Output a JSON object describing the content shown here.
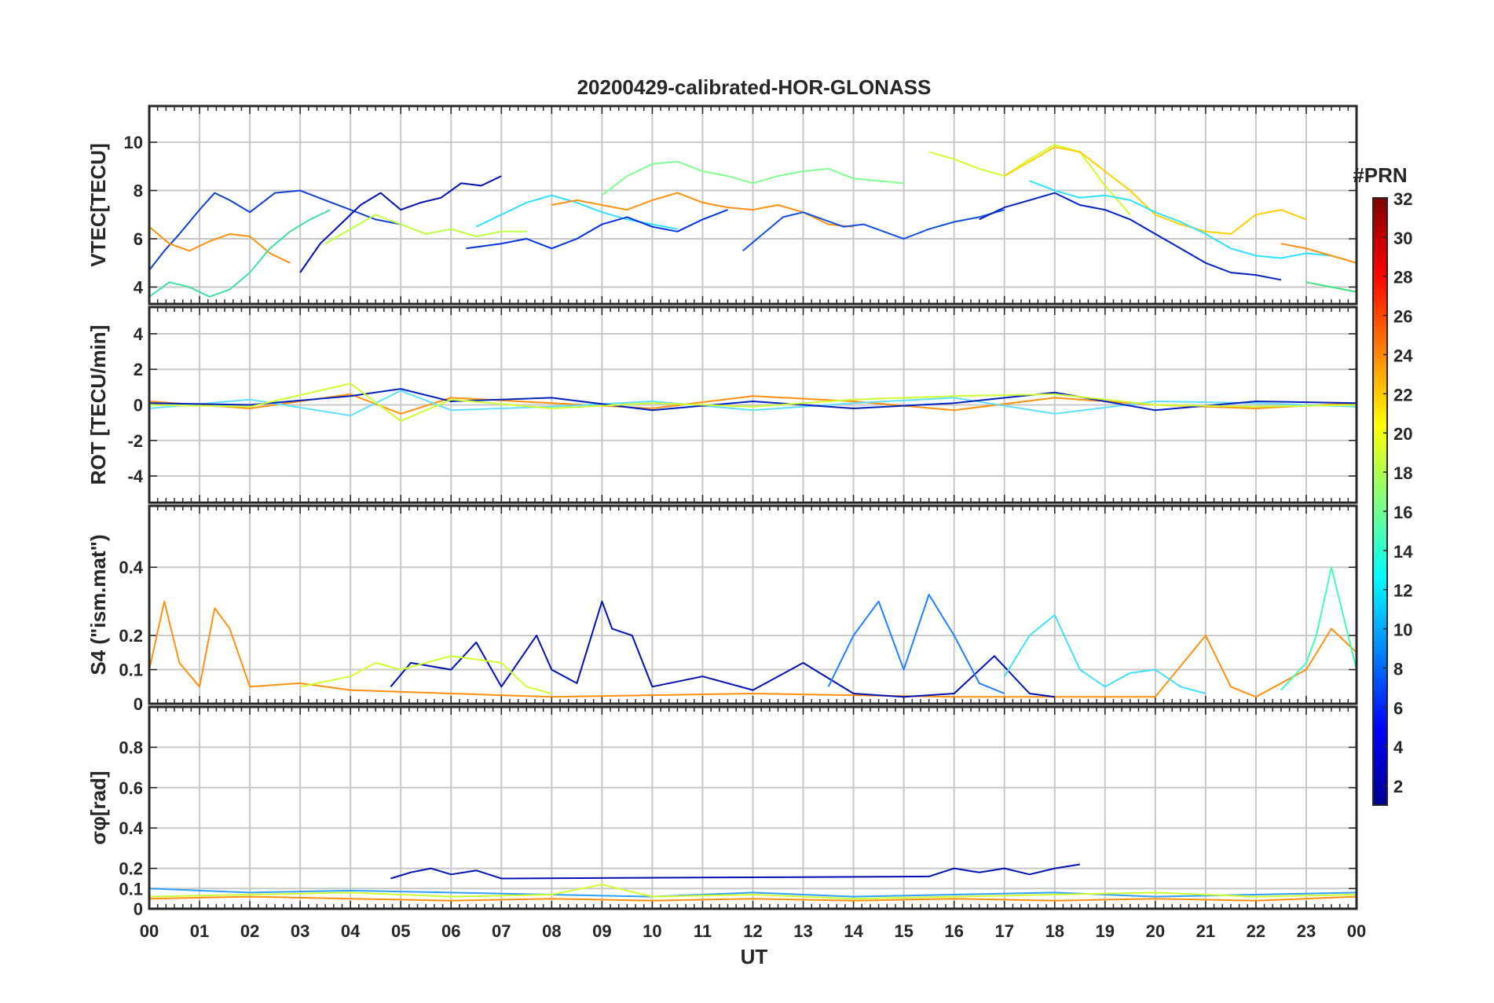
{
  "chart_data": {
    "type": "line",
    "title": "20200429-calibrated-HOR-GLONASS",
    "xlabel": "UT",
    "x_ticks": [
      "00",
      "01",
      "02",
      "03",
      "04",
      "05",
      "06",
      "07",
      "08",
      "09",
      "10",
      "11",
      "12",
      "13",
      "14",
      "15",
      "16",
      "17",
      "18",
      "19",
      "20",
      "21",
      "22",
      "23",
      "00"
    ],
    "xlim": [
      0,
      24
    ],
    "grid": true,
    "colorbar": {
      "label": "#PRN",
      "range": [
        1,
        32
      ],
      "ticks": [
        "2",
        "4",
        "6",
        "8",
        "10",
        "12",
        "14",
        "16",
        "18",
        "20",
        "22",
        "24",
        "26",
        "28",
        "30",
        "32"
      ],
      "colormap": "jet",
      "colors": [
        "#00008f",
        "#0000ff",
        "#0080ff",
        "#00ffff",
        "#80ff80",
        "#ffff00",
        "#ff8000",
        "#ff0000",
        "#800000"
      ]
    },
    "panels": [
      {
        "id": "vtec",
        "ylabel": "VTEC[TECU]",
        "ylim": [
          3.3,
          11.5
        ],
        "y_ticks": [
          "4",
          "6",
          "8",
          "10"
        ],
        "series": [
          {
            "color": "#1040d0",
            "x": [
              0.0,
              0.3,
              0.6,
              1.0,
              1.3,
              1.6,
              2.0,
              2.5,
              3.0,
              3.5,
              4.0,
              4.5,
              5.0
            ],
            "y": [
              4.7,
              5.5,
              6.2,
              7.2,
              7.9,
              7.6,
              7.1,
              7.9,
              8.0,
              7.6,
              7.2,
              6.8,
              6.6
            ]
          },
          {
            "color": "#0010b0",
            "x": [
              3.0,
              3.4,
              3.8,
              4.2,
              4.6,
              5.0,
              5.4,
              5.8,
              6.2,
              6.6,
              7.0
            ],
            "y": [
              4.6,
              5.8,
              6.6,
              7.4,
              7.9,
              7.2,
              7.5,
              7.7,
              8.3,
              8.2,
              8.6
            ]
          },
          {
            "color": "#ff9010",
            "x": [
              0.0,
              0.4,
              0.8,
              1.2,
              1.6,
              2.0,
              2.4,
              2.8
            ],
            "y": [
              6.5,
              5.8,
              5.5,
              5.9,
              6.2,
              6.1,
              5.4,
              5.0
            ]
          },
          {
            "color": "#40e0a0",
            "x": [
              0.0,
              0.4,
              0.8,
              1.2,
              1.6,
              2.0,
              2.4,
              2.8,
              3.2,
              3.6
            ],
            "y": [
              3.6,
              4.2,
              4.0,
              3.6,
              3.9,
              4.6,
              5.6,
              6.3,
              6.8,
              7.2
            ]
          },
          {
            "color": "#c0ff40",
            "x": [
              3.5,
              4.0,
              4.5,
              5.0,
              5.5,
              6.0,
              6.5,
              7.0,
              7.5
            ],
            "y": [
              5.8,
              6.4,
              7.0,
              6.6,
              6.2,
              6.4,
              6.1,
              6.3,
              6.3
            ]
          },
          {
            "color": "#30e0ff",
            "x": [
              6.5,
              7.0,
              7.5,
              8.0,
              8.5,
              9.0,
              9.5,
              10.0,
              10.5
            ],
            "y": [
              6.5,
              7.0,
              7.5,
              7.8,
              7.5,
              7.1,
              6.8,
              6.6,
              6.4
            ]
          },
          {
            "color": "#ff9010",
            "x": [
              8.0,
              8.5,
              9.0,
              9.5,
              10.0,
              10.5,
              11.0,
              11.5,
              12.0,
              12.5,
              13.0,
              13.5,
              14.0
            ],
            "y": [
              7.4,
              7.6,
              7.4,
              7.2,
              7.6,
              7.9,
              7.5,
              7.3,
              7.2,
              7.4,
              7.1,
              6.6,
              6.5
            ]
          },
          {
            "color": "#0030e0",
            "x": [
              6.3,
              7.0,
              7.5,
              8.0,
              8.5,
              9.0,
              9.5,
              10.0,
              10.5,
              11.0,
              11.5
            ],
            "y": [
              5.6,
              5.8,
              6.0,
              5.6,
              6.0,
              6.6,
              6.9,
              6.5,
              6.3,
              6.8,
              7.2
            ]
          },
          {
            "color": "#80ff90",
            "x": [
              9.0,
              9.5,
              10.0,
              10.5,
              11.0,
              11.5,
              12.0,
              12.5,
              13.0,
              13.5,
              14.0,
              14.5,
              15.0
            ],
            "y": [
              7.8,
              8.6,
              9.1,
              9.2,
              8.8,
              8.6,
              8.3,
              8.6,
              8.8,
              8.9,
              8.5,
              8.4,
              8.3
            ]
          },
          {
            "color": "#1050e0",
            "x": [
              11.8,
              12.2,
              12.6,
              13.0,
              13.4,
              13.8,
              14.2,
              14.6,
              15.0,
              15.5,
              16.0,
              16.5,
              17.0
            ],
            "y": [
              5.5,
              6.2,
              6.9,
              7.1,
              6.8,
              6.5,
              6.6,
              6.3,
              6.0,
              6.4,
              6.7,
              6.9,
              7.2
            ]
          },
          {
            "color": "#d0ff30",
            "x": [
              15.5,
              16.0,
              16.5,
              17.0,
              17.5,
              18.0,
              18.5,
              19.0,
              19.5
            ],
            "y": [
              9.6,
              9.3,
              8.9,
              8.6,
              9.3,
              9.9,
              9.6,
              8.2,
              7.0
            ]
          },
          {
            "color": "#ffd000",
            "x": [
              17.0,
              17.5,
              18.0,
              18.5,
              19.0,
              19.5,
              20.0,
              20.5,
              21.0,
              21.5,
              22.0,
              22.5,
              23.0
            ],
            "y": [
              8.6,
              9.2,
              9.8,
              9.6,
              8.8,
              8.0,
              7.0,
              6.6,
              6.3,
              6.2,
              7.0,
              7.2,
              6.8
            ]
          },
          {
            "color": "#0020c0",
            "x": [
              16.5,
              17.0,
              17.5,
              18.0,
              18.5,
              19.0,
              19.5,
              20.0,
              20.5,
              21.0,
              21.5,
              22.0,
              22.5
            ],
            "y": [
              6.8,
              7.3,
              7.6,
              7.9,
              7.4,
              7.2,
              6.8,
              6.2,
              5.6,
              5.0,
              4.6,
              4.5,
              4.3
            ]
          },
          {
            "color": "#30e0ff",
            "x": [
              17.5,
              18.0,
              18.5,
              19.0,
              19.5,
              20.0,
              20.5,
              21.0,
              21.5,
              22.0,
              22.5,
              23.0,
              23.5
            ],
            "y": [
              8.4,
              8.0,
              7.7,
              7.8,
              7.6,
              7.1,
              6.7,
              6.2,
              5.6,
              5.3,
              5.2,
              5.4,
              5.3
            ]
          },
          {
            "color": "#ff9010",
            "x": [
              22.5,
              23.0,
              23.5,
              24.0
            ],
            "y": [
              5.8,
              5.6,
              5.3,
              5.0
            ]
          },
          {
            "color": "#40e080",
            "x": [
              23.0,
              23.5,
              24.0
            ],
            "y": [
              4.2,
              4.0,
              3.8
            ]
          }
        ]
      },
      {
        "id": "rot",
        "ylabel": "ROT [TECU/min]",
        "ylim": [
          -5.5,
          5.5
        ],
        "y_ticks": [
          "-4",
          "-2",
          "0",
          "2",
          "4"
        ],
        "series": [
          {
            "color": "#ff9010",
            "x": [
              0,
              2,
              4,
              5,
              6,
              8,
              10,
              12,
              14,
              16,
              18,
              20,
              22,
              24
            ],
            "y": [
              0.2,
              -0.2,
              0.6,
              -0.5,
              0.4,
              0.1,
              -0.2,
              0.5,
              0.2,
              -0.3,
              0.4,
              0.0,
              -0.2,
              0.1
            ]
          },
          {
            "color": "#60e0ff",
            "x": [
              0,
              2,
              4,
              5,
              6,
              8,
              10,
              12,
              14,
              16,
              18,
              20,
              22,
              24
            ],
            "y": [
              -0.2,
              0.3,
              -0.6,
              0.8,
              -0.3,
              -0.1,
              0.2,
              -0.3,
              0.1,
              0.4,
              -0.5,
              0.2,
              0.1,
              -0.1
            ]
          },
          {
            "color": "#0020c0",
            "x": [
              0,
              2,
              4,
              5,
              6,
              8,
              10,
              12,
              14,
              16,
              18,
              20,
              22,
              24
            ],
            "y": [
              0.1,
              0.0,
              0.5,
              0.9,
              0.2,
              0.4,
              -0.3,
              0.2,
              -0.2,
              0.1,
              0.7,
              -0.3,
              0.2,
              0.1
            ]
          },
          {
            "color": "#d0ff30",
            "x": [
              0,
              2,
              4,
              5,
              6,
              8,
              10,
              12,
              14,
              16,
              18,
              20,
              22,
              24
            ],
            "y": [
              0.0,
              -0.1,
              1.2,
              -0.9,
              0.3,
              -0.2,
              0.1,
              -0.1,
              0.3,
              0.5,
              0.6,
              0.0,
              -0.1,
              0.0
            ]
          }
        ]
      },
      {
        "id": "s4",
        "ylabel": "S4 (\"ism.mat\")",
        "ylim": [
          0,
          0.58
        ],
        "y_ticks": [
          "0",
          "0.1",
          "0.2",
          "0.4"
        ],
        "series": [
          {
            "color": "#ff9010",
            "x": [
              0,
              0.3,
              0.6,
              1.0,
              1.3,
              1.6,
              2.0,
              3.0,
              4.0,
              8.0,
              12.0,
              16.0,
              20.0,
              21.0,
              21.5,
              22.0,
              23.0,
              23.5,
              24.0
            ],
            "y": [
              0.1,
              0.3,
              0.12,
              0.05,
              0.28,
              0.22,
              0.05,
              0.06,
              0.04,
              0.02,
              0.03,
              0.02,
              0.02,
              0.2,
              0.05,
              0.02,
              0.1,
              0.22,
              0.15
            ]
          },
          {
            "color": "#0010b0",
            "x": [
              4.8,
              5.2,
              6.0,
              6.5,
              7.0,
              7.7,
              8.0,
              8.5,
              9.0,
              9.2,
              9.6,
              10.0,
              11.0,
              12.0,
              13.0,
              14.0,
              15.0,
              16.0,
              16.8,
              17.5,
              18.0
            ],
            "y": [
              0.05,
              0.12,
              0.1,
              0.18,
              0.05,
              0.2,
              0.1,
              0.06,
              0.3,
              0.22,
              0.2,
              0.05,
              0.08,
              0.04,
              0.12,
              0.03,
              0.02,
              0.03,
              0.14,
              0.03,
              0.02
            ]
          },
          {
            "color": "#2080ff",
            "x": [
              13.5,
              14.0,
              14.5,
              15.0,
              15.5,
              16.0,
              16.5,
              17.0
            ],
            "y": [
              0.05,
              0.2,
              0.3,
              0.1,
              0.32,
              0.2,
              0.06,
              0.03
            ]
          },
          {
            "color": "#40e0ff",
            "x": [
              17.0,
              17.5,
              18.0,
              18.5,
              19.0,
              19.5,
              20.0,
              20.5,
              21.0
            ],
            "y": [
              0.08,
              0.2,
              0.26,
              0.1,
              0.05,
              0.09,
              0.1,
              0.05,
              0.03
            ]
          },
          {
            "color": "#40ffb0",
            "x": [
              22.5,
              23.0,
              23.2,
              23.5,
              24.0
            ],
            "y": [
              0.04,
              0.12,
              0.2,
              0.4,
              0.1
            ]
          },
          {
            "color": "#d0ff30",
            "x": [
              3.0,
              4.0,
              4.5,
              5.0,
              6.0,
              7.0,
              7.5,
              8.0
            ],
            "y": [
              0.05,
              0.08,
              0.12,
              0.1,
              0.14,
              0.12,
              0.05,
              0.03
            ]
          }
        ]
      },
      {
        "id": "sigma_phi",
        "ylabel": "σφ[rad]",
        "ylim": [
          0,
          1.0
        ],
        "y_ticks": [
          "0",
          "0.1",
          "0.2",
          "0.4",
          "0.6",
          "0.8"
        ],
        "series": [
          {
            "color": "#30a0ff",
            "x": [
              0,
              2,
              4,
              6,
              8,
              10,
              12,
              14,
              16,
              18,
              20,
              22,
              24
            ],
            "y": [
              0.1,
              0.08,
              0.09,
              0.08,
              0.07,
              0.06,
              0.08,
              0.06,
              0.07,
              0.08,
              0.06,
              0.07,
              0.08
            ]
          },
          {
            "color": "#0010b0",
            "x": [
              4.8,
              5.2,
              5.6,
              6.0,
              6.5,
              7.0,
              15.5,
              16.0,
              16.5,
              17.0,
              17.5,
              18.0,
              18.5
            ],
            "y": [
              0.15,
              0.18,
              0.2,
              0.17,
              0.19,
              0.15,
              0.16,
              0.2,
              0.18,
              0.2,
              0.17,
              0.2,
              0.22
            ]
          },
          {
            "color": "#ff9010",
            "x": [
              0,
              2,
              4,
              6,
              8,
              10,
              12,
              14,
              16,
              18,
              20,
              22,
              24
            ],
            "y": [
              0.05,
              0.06,
              0.05,
              0.04,
              0.05,
              0.04,
              0.05,
              0.04,
              0.05,
              0.04,
              0.05,
              0.04,
              0.06
            ]
          },
          {
            "color": "#d0ff30",
            "x": [
              0,
              2,
              4,
              6,
              8,
              9,
              10,
              12,
              14,
              16,
              18,
              20,
              22,
              24
            ],
            "y": [
              0.06,
              0.07,
              0.08,
              0.06,
              0.07,
              0.12,
              0.06,
              0.07,
              0.05,
              0.06,
              0.07,
              0.08,
              0.06,
              0.07
            ]
          }
        ]
      }
    ]
  }
}
